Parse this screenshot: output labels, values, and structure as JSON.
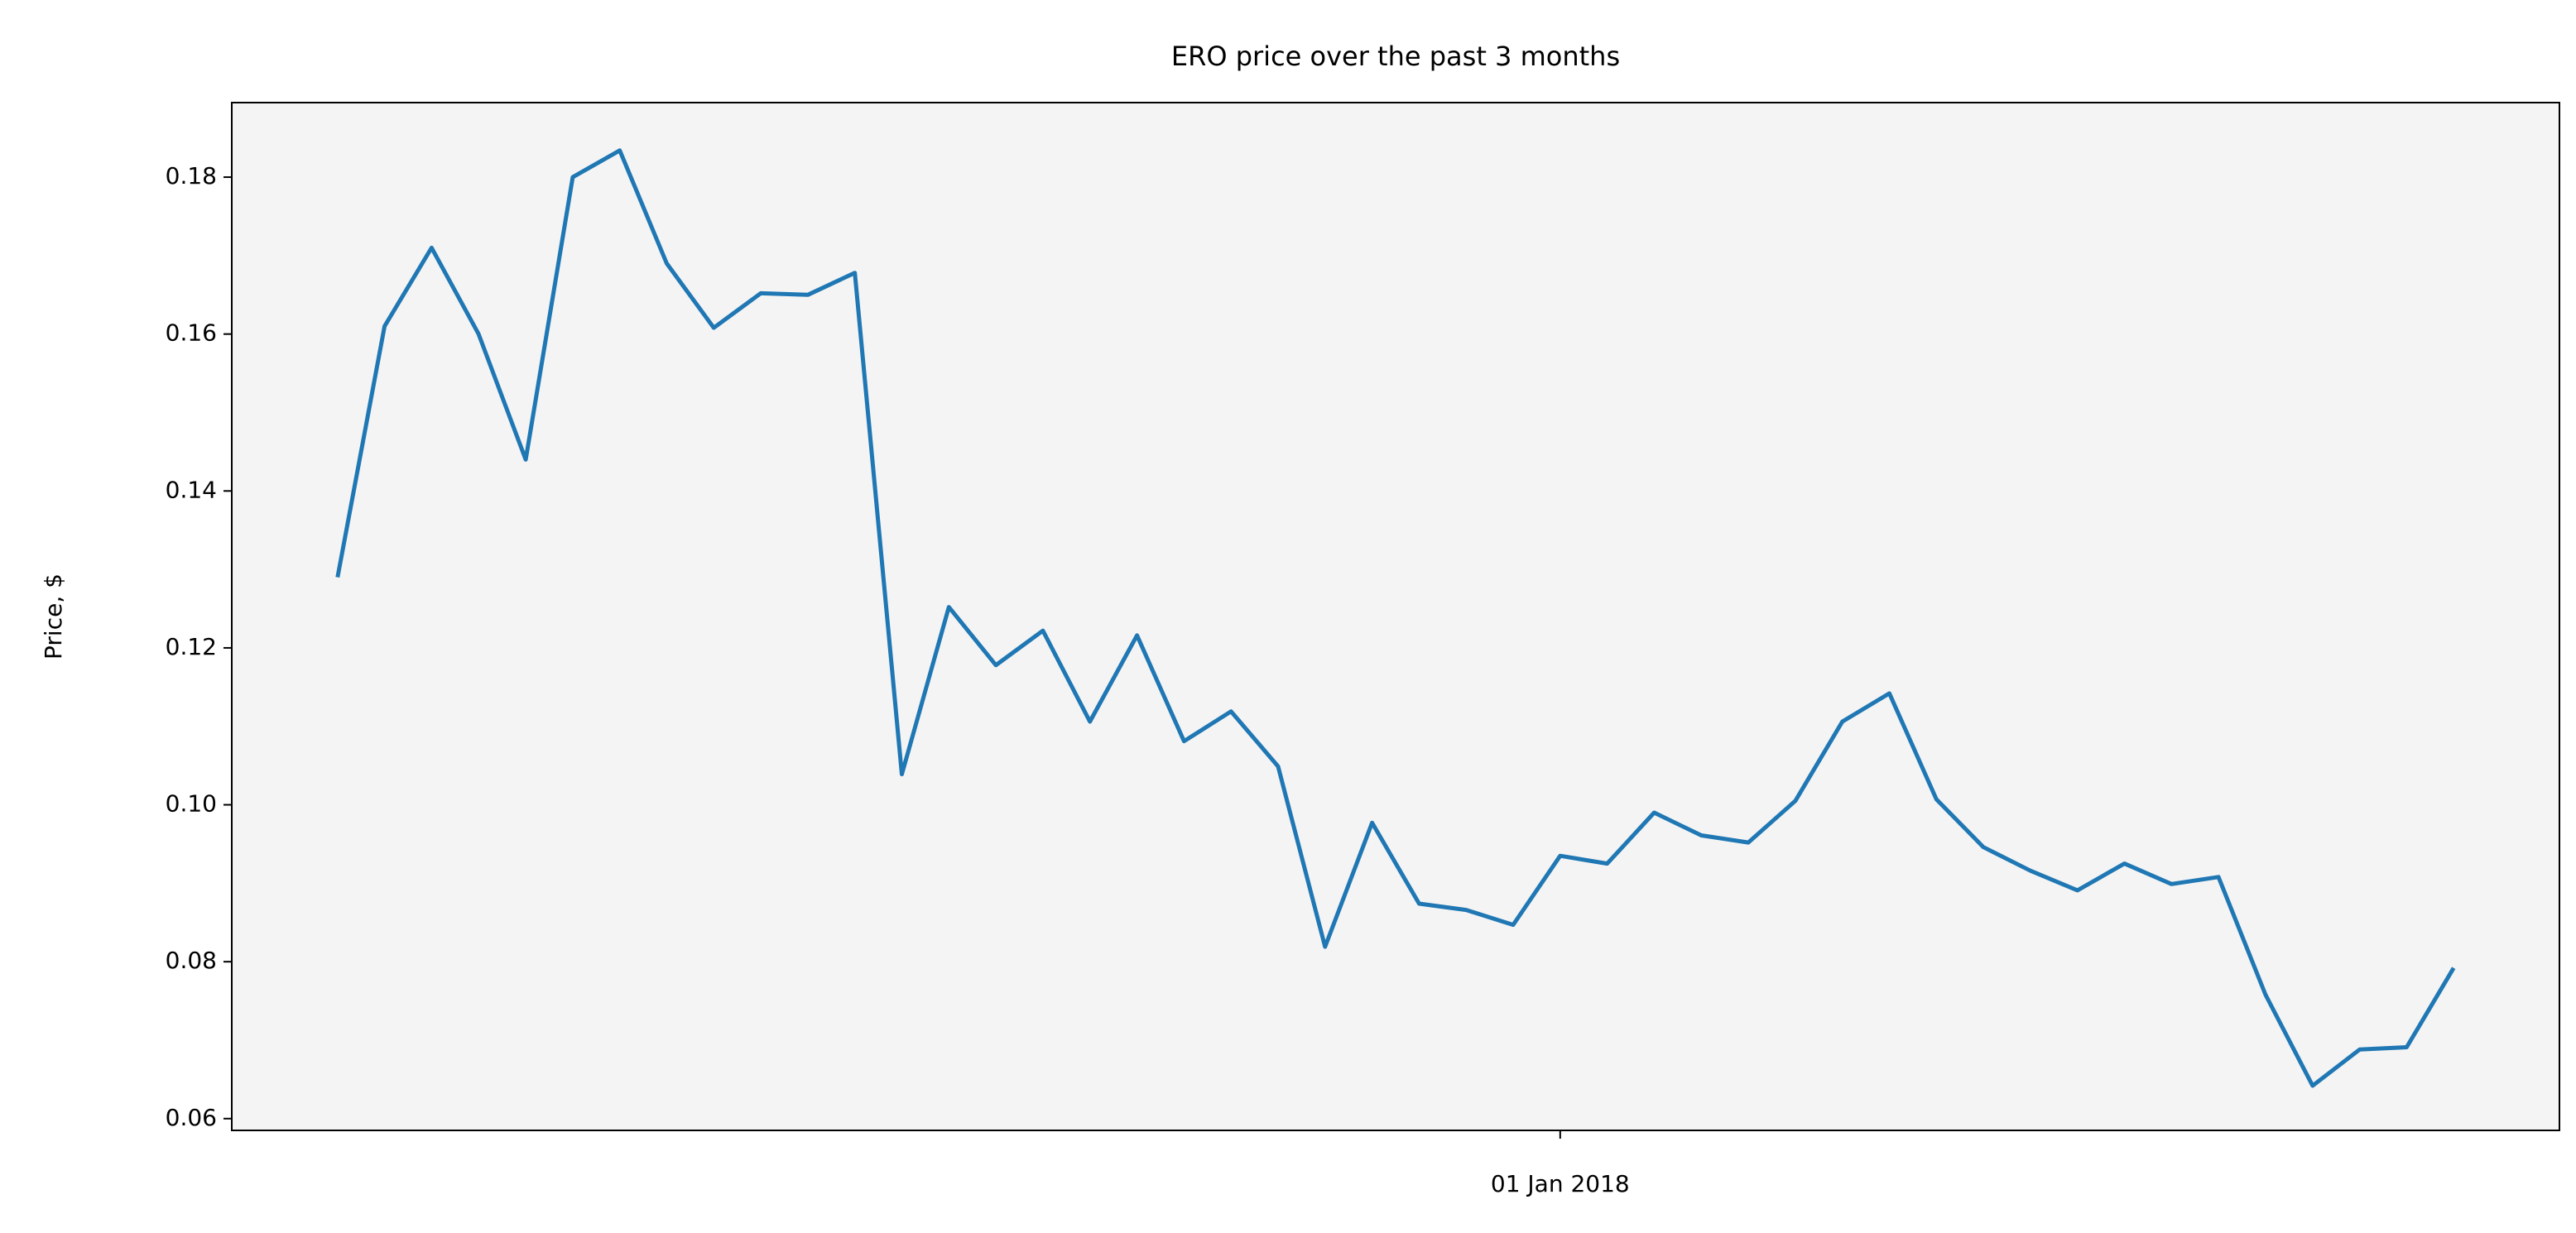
{
  "chart_data": {
    "type": "line",
    "title": "ERO price over the past 3 months",
    "ylabel": "Price, $",
    "x": [
      "2017-11-10",
      "2017-11-12",
      "2017-11-14",
      "2017-11-16",
      "2017-11-18",
      "2017-11-20",
      "2017-11-22",
      "2017-11-24",
      "2017-11-26",
      "2017-11-28",
      "2017-11-30",
      "2017-12-02",
      "2017-12-04",
      "2017-12-06",
      "2017-12-08",
      "2017-12-10",
      "2017-12-12",
      "2017-12-14",
      "2017-12-16",
      "2017-12-18",
      "2017-12-20",
      "2017-12-22",
      "2017-12-24",
      "2017-12-26",
      "2017-12-28",
      "2017-12-30",
      "2018-01-01",
      "2018-01-03",
      "2018-01-05",
      "2018-01-07",
      "2018-01-09",
      "2018-01-11",
      "2018-01-13",
      "2018-01-15",
      "2018-01-17",
      "2018-01-19",
      "2018-01-21",
      "2018-01-23",
      "2018-01-25",
      "2018-01-27",
      "2018-01-29",
      "2018-01-31",
      "2018-02-02",
      "2018-02-04",
      "2018-02-06",
      "2018-02-08"
    ],
    "series": [
      {
        "name": "ERO",
        "color": "#1f77b4",
        "values": [
          0.129,
          0.161,
          0.171,
          0.16,
          0.144,
          0.18,
          0.1834,
          0.169,
          0.1608,
          0.1652,
          0.165,
          0.1678,
          0.1039,
          0.1252,
          0.1178,
          0.1222,
          0.1106,
          0.1216,
          0.1081,
          0.1119,
          0.1049,
          0.0819,
          0.0977,
          0.0874,
          0.0866,
          0.0847,
          0.0935,
          0.0925,
          0.099,
          0.0961,
          0.0952,
          0.1005,
          0.1106,
          0.1142,
          0.1007,
          0.0946,
          0.0916,
          0.0891,
          0.0925,
          0.0899,
          0.0908,
          0.0758,
          0.0642,
          0.0688,
          0.0691,
          0.0792
        ]
      }
    ],
    "xlim": [
      "2017-11-05T12:00:00Z",
      "2018-02-12T12:00:00Z"
    ],
    "xticks": [
      {
        "value": "2018-01-01",
        "label": "01 Jan 2018"
      }
    ],
    "ylim": [
      0.0585,
      0.1895
    ],
    "yticks": [
      0.06,
      0.08,
      {
        "value": 0.1,
        "label": "0.10"
      },
      0.12,
      0.14,
      0.16,
      0.18
    ],
    "background": "#f4f4f4"
  }
}
